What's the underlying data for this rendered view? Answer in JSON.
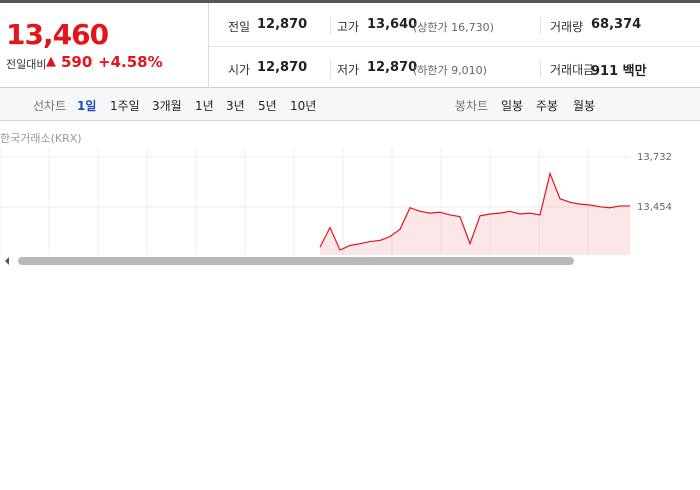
{
  "quote": {
    "price": "13,460",
    "change_label": "전일대비",
    "change": "590",
    "change_pct": "+4.58%"
  },
  "stats": [
    {
      "label": "전일",
      "value": "12,870"
    },
    {
      "label": "고가",
      "value": "13,640",
      "note": "(상한가 16,730)"
    },
    {
      "label": "거래량",
      "value": "68,374"
    },
    {
      "label": "시가",
      "value": "12,870"
    },
    {
      "label": "저가",
      "value": "12,870",
      "note": "(하한가 9,010)"
    },
    {
      "label": "거래대금",
      "value": "911 백만"
    }
  ],
  "tabs": {
    "line_label": "선차트",
    "line": [
      "1일",
      "1주일",
      "3개월",
      "1년",
      "3년",
      "5년",
      "10년"
    ],
    "candle_label": "봉차트",
    "candle": [
      "일봉",
      "주봉",
      "월봉"
    ]
  },
  "chart_data": {
    "type": "area",
    "source": "한국거래소(KRX)",
    "color": "#e3141e",
    "values": [
      null,
      null,
      null,
      null,
      null,
      null,
      null,
      null,
      null,
      null,
      null,
      null,
      null,
      null,
      null,
      null,
      null,
      null,
      null,
      null,
      null,
      null,
      null,
      null,
      null,
      null,
      null,
      null,
      null,
      null,
      null,
      null,
      13230,
      13340,
      13215,
      13240,
      13250,
      13262,
      13268,
      13290,
      13330,
      13450,
      13430,
      13420,
      13425,
      13410,
      13400,
      13250,
      13405,
      13415,
      13420,
      13430,
      13415,
      13420,
      13410,
      13640,
      13500,
      13480,
      13470,
      13465,
      13455,
      13450,
      13460,
      13460
    ],
    "ylim": [
      13176,
      13732
    ],
    "yticks": [
      {
        "value": 13732,
        "label": "13,732"
      },
      {
        "value": 13454,
        "label": "13,454"
      }
    ]
  }
}
